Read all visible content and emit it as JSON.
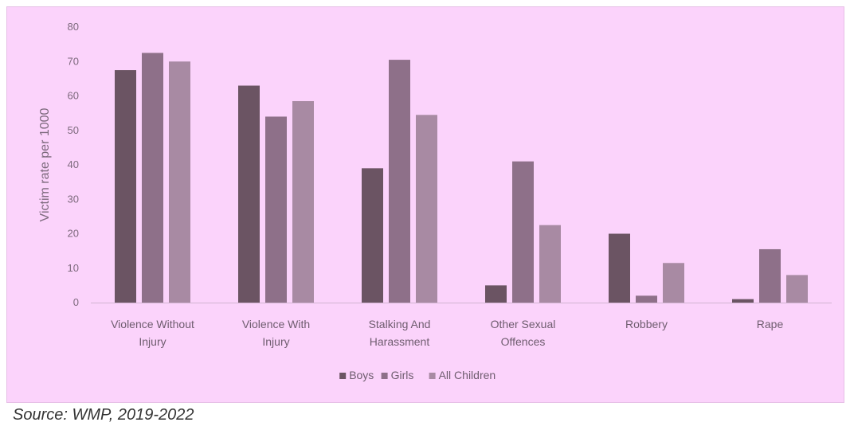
{
  "source_note": "Source: WMP, 2019-2022",
  "colors": {
    "panel_background": "#fbd3fb",
    "Boys": "#6b5463",
    "Girls": "#8e7089",
    "All Children": "#a88aa3"
  },
  "chart_data": {
    "type": "bar",
    "title": "",
    "xlabel": "",
    "ylabel": "Victim rate per 1000",
    "ylim": [
      0,
      80
    ],
    "yticks": [
      0,
      10,
      20,
      30,
      40,
      50,
      60,
      70,
      80
    ],
    "grid": false,
    "legend_position": "bottom",
    "categories": [
      [
        "Violence Without",
        "Injury"
      ],
      [
        "Violence With",
        "Injury"
      ],
      [
        "Stalking And",
        "Harassment"
      ],
      [
        "Other Sexual",
        "Offences"
      ],
      [
        "Robbery"
      ],
      [
        "Rape"
      ]
    ],
    "series": [
      {
        "name": "Boys",
        "values": [
          67.5,
          63,
          39,
          5,
          20,
          1
        ]
      },
      {
        "name": "Girls",
        "values": [
          72.5,
          54,
          70.5,
          41,
          2,
          15.5
        ]
      },
      {
        "name": "All Children",
        "values": [
          70,
          58.5,
          54.5,
          22.5,
          11.5,
          8
        ]
      }
    ]
  }
}
